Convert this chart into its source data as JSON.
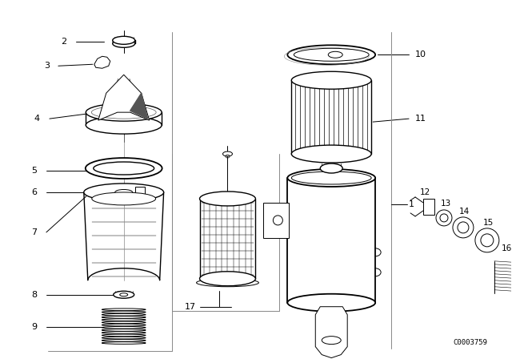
{
  "background_color": "#ffffff",
  "line_color": "#000000",
  "diagram_code": "C0003759",
  "figsize": [
    6.4,
    4.48
  ],
  "dpi": 100
}
